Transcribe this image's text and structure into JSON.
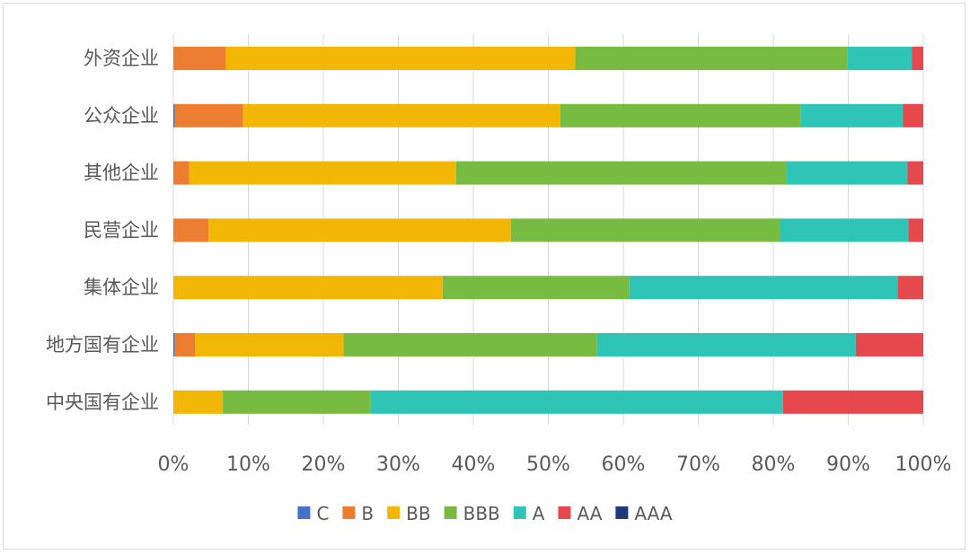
{
  "chart_data": {
    "type": "bar",
    "orientation": "horizontal",
    "stacked": "percent",
    "title": "",
    "xlabel": "",
    "ylabel": "",
    "xlim": [
      0,
      100
    ],
    "x_ticks": [
      "0%",
      "10%",
      "20%",
      "30%",
      "40%",
      "50%",
      "60%",
      "70%",
      "80%",
      "90%",
      "100%"
    ],
    "grid": true,
    "legend_position": "bottom",
    "categories": [
      "外资企业",
      "公众企业",
      "其他企业",
      "民营企业",
      "集体企业",
      "地方国有企业",
      "中央国有企业"
    ],
    "series": [
      {
        "name": "C",
        "color": "#4472C4",
        "values": [
          0,
          0.2,
          0,
          0,
          0,
          0.2,
          0
        ]
      },
      {
        "name": "B",
        "color": "#ED7D31",
        "values": [
          7.0,
          9.1,
          2.1,
          4.7,
          0,
          2.7,
          0
        ]
      },
      {
        "name": "BB",
        "color": "#F2B705",
        "values": [
          46.6,
          42.3,
          35.6,
          40.3,
          35.9,
          19.8,
          6.6
        ]
      },
      {
        "name": "BBB",
        "color": "#77BB41",
        "values": [
          36.3,
          32.1,
          44.1,
          35.9,
          24.9,
          33.8,
          19.7
        ]
      },
      {
        "name": "A",
        "color": "#2EC4B6",
        "values": [
          8.6,
          13.6,
          16.1,
          17.1,
          35.8,
          34.5,
          55.0
        ]
      },
      {
        "name": "AA",
        "color": "#E5484D",
        "values": [
          1.5,
          2.7,
          2.1,
          2.0,
          3.4,
          9.0,
          18.7
        ]
      },
      {
        "name": "AAA",
        "color": "#1F3A7A",
        "values": [
          0,
          0,
          0,
          0,
          0,
          0,
          0
        ]
      }
    ]
  }
}
